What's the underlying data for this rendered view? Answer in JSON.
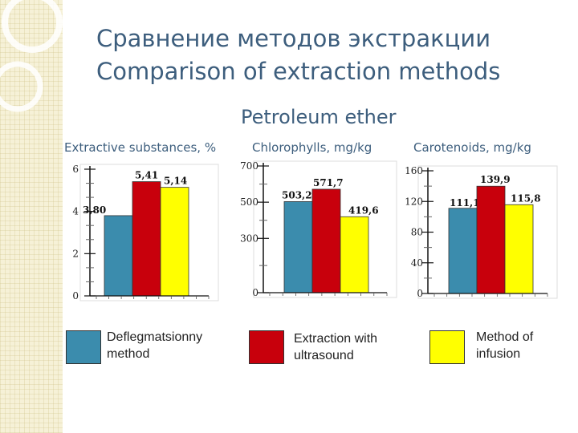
{
  "title": {
    "line1": "Сравнение методов экстракции",
    "line2": "Comparison of extraction methods"
  },
  "subtitle": "Petroleum ether",
  "colors": {
    "series": [
      "#3b8cad",
      "#c8000c",
      "#ffff00"
    ],
    "title_text": "#3d5e7d",
    "strip_bg": "#f6f1d7"
  },
  "legend": [
    {
      "label": "Deflegmatsionny method",
      "color": "#3b8cad"
    },
    {
      "label": "Extraction with ultrasound",
      "color": "#c8000c"
    },
    {
      "label": "Method of infusion",
      "color": "#ffff00"
    }
  ],
  "chart_data": [
    {
      "type": "bar",
      "title": "Extractive substances, %",
      "series": [
        {
          "name": "Deflegmatsionny method",
          "values": [
            3.8
          ]
        },
        {
          "name": "Extraction with ultrasound",
          "values": [
            5.41
          ]
        },
        {
          "name": "Method of infusion",
          "values": [
            5.14
          ]
        }
      ],
      "value_labels": [
        "3,80",
        "5,41",
        "5,14"
      ],
      "ylim": [
        0,
        6
      ],
      "yticks": [
        "0",
        "2",
        "4",
        "6"
      ]
    },
    {
      "type": "bar",
      "title": "Chlorophylls, mg/kg",
      "series": [
        {
          "name": "Deflegmatsionny method",
          "values": [
            503.2
          ]
        },
        {
          "name": "Extraction with ultrasound",
          "values": [
            571.7
          ]
        },
        {
          "name": "Method of infusion",
          "values": [
            419.6
          ]
        }
      ],
      "value_labels": [
        "503,2",
        "571,7",
        "419,6"
      ],
      "ylim": [
        0,
        700
      ],
      "yticks": [
        "0",
        "300",
        "500",
        "700"
      ]
    },
    {
      "type": "bar",
      "title": "Carotenoids, mg/kg",
      "series": [
        {
          "name": "Deflegmatsionny method",
          "values": [
            111.1
          ]
        },
        {
          "name": "Extraction with ultrasound",
          "values": [
            139.9
          ]
        },
        {
          "name": "Method of infusion",
          "values": [
            115.8
          ]
        }
      ],
      "value_labels": [
        "111,1",
        "139,9",
        "115,8"
      ],
      "ylim": [
        0,
        160
      ],
      "yticks": [
        "0",
        "40",
        "80",
        "120",
        "160"
      ]
    }
  ]
}
